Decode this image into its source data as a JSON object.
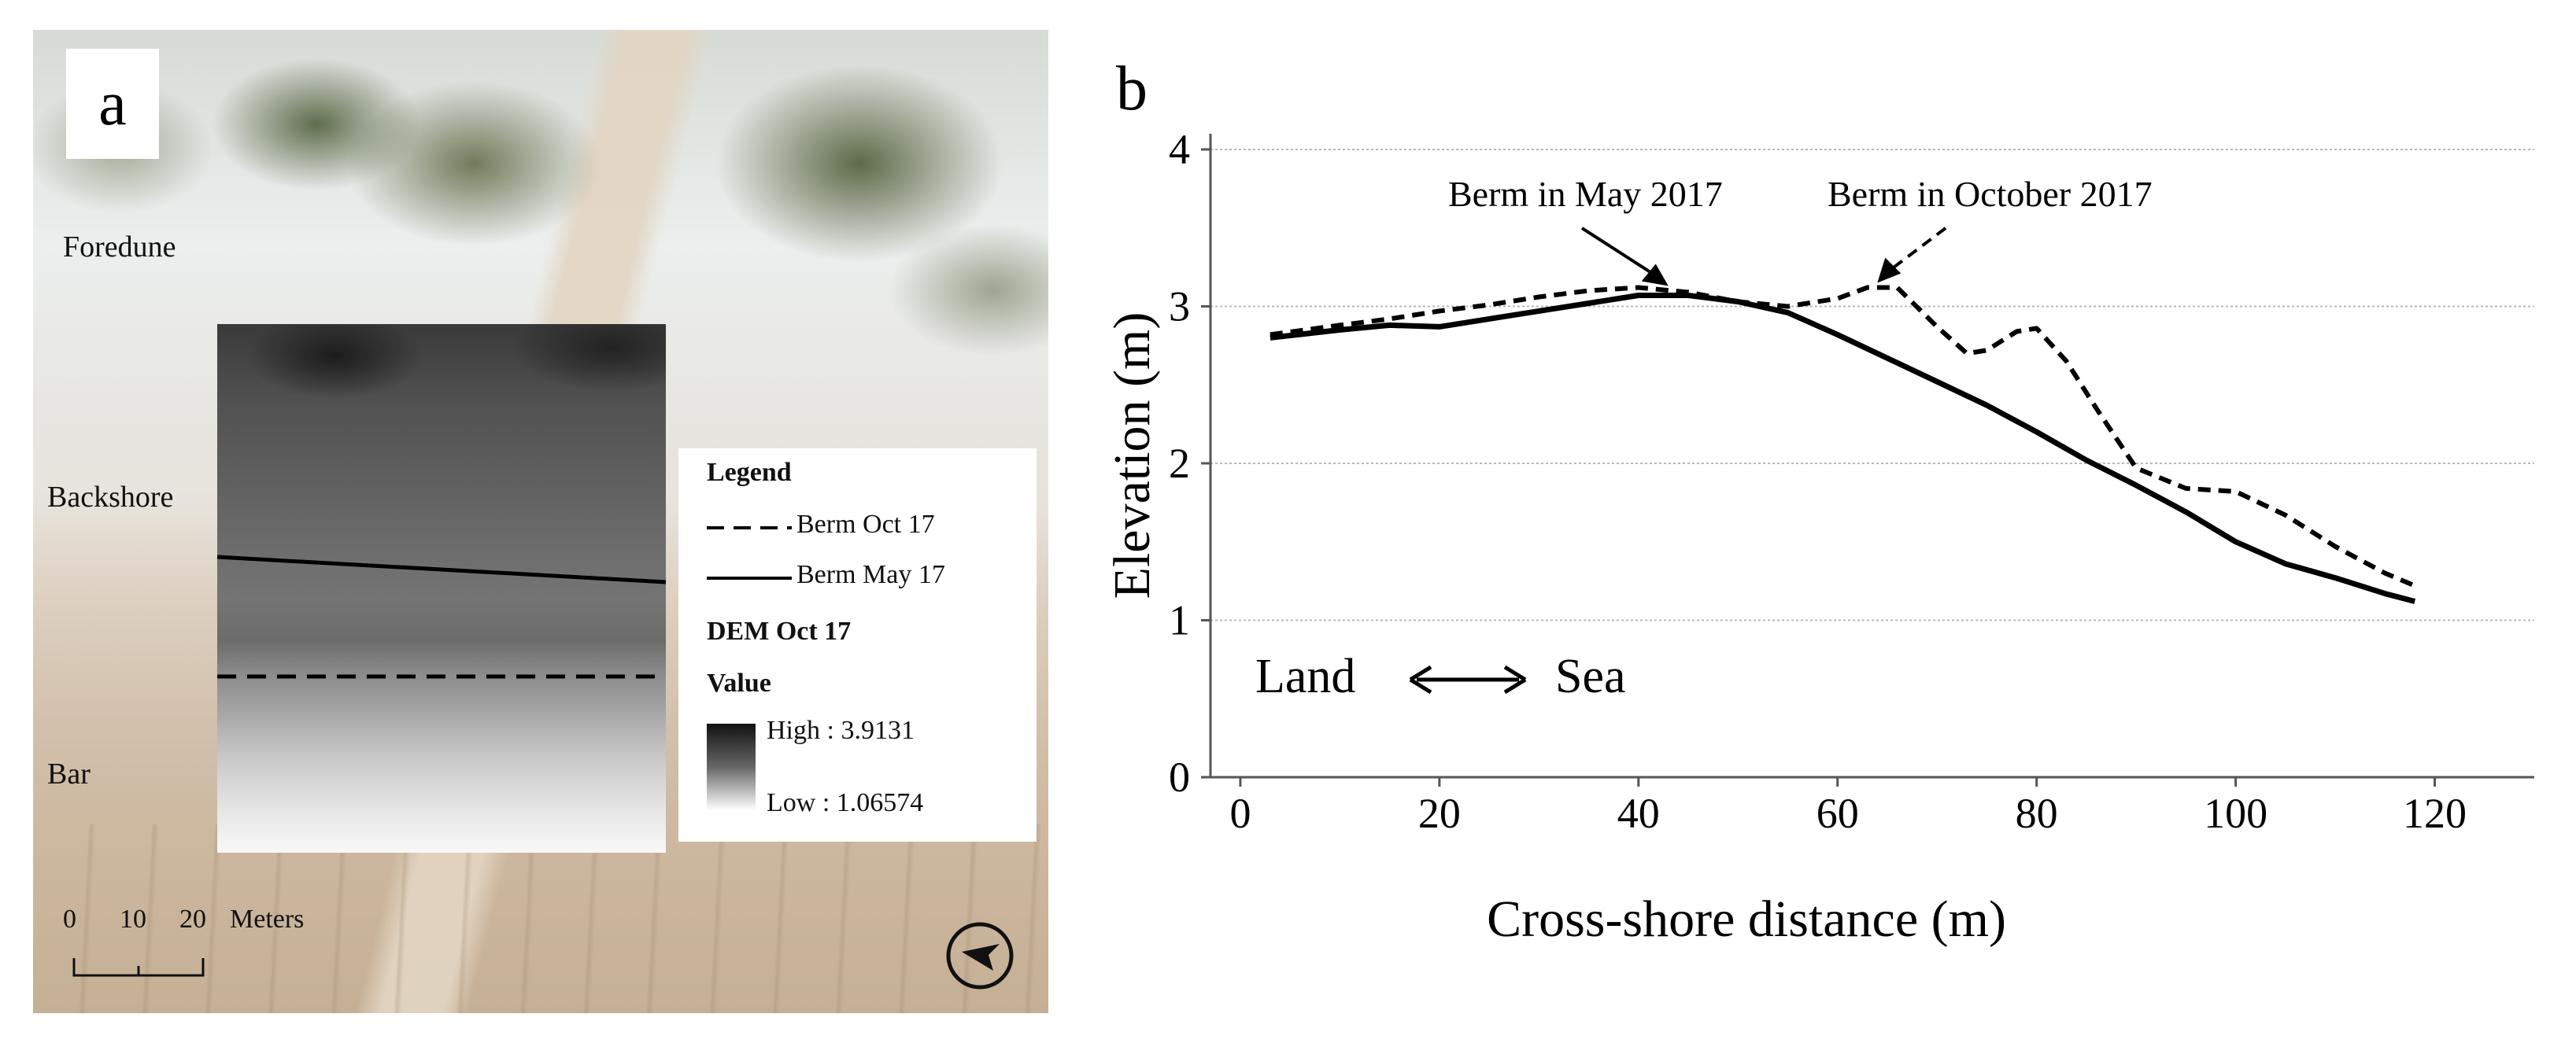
{
  "panel_a": {
    "letter": "a",
    "zones": [
      "Foredune",
      "Backshore",
      "Bar"
    ],
    "legend": {
      "title": "Legend",
      "line_items": [
        "Berm Oct 17",
        "Berm May 17"
      ],
      "raster_title": "DEM Oct 17",
      "value_label": "Value",
      "high": "High : 3.9131",
      "low": "Low : 1.06574"
    },
    "scalebar": {
      "ticks": [
        "0",
        "10",
        "20"
      ],
      "unit": "Meters"
    },
    "north_icon": "north-arrow-icon"
  },
  "chart_data": {
    "type": "line",
    "panel_letter": "b",
    "xlabel": "Cross-shore distance (m)",
    "ylabel": "Elevation (m)",
    "xlim": [
      -3,
      130
    ],
    "ylim": [
      0,
      4.1
    ],
    "x_ticks": [
      0,
      20,
      40,
      60,
      80,
      100,
      120
    ],
    "y_ticks": [
      0,
      1,
      2,
      3,
      4
    ],
    "grid": "horizontal",
    "series": [
      {
        "name": "Berm May 2017",
        "style": "solid",
        "x": [
          3,
          10,
          15,
          20,
          25,
          30,
          35,
          40,
          45,
          50,
          55,
          60,
          65,
          70,
          75,
          80,
          85,
          90,
          95,
          100,
          105,
          110,
          115,
          118
        ],
        "y": [
          2.8,
          2.85,
          2.88,
          2.87,
          2.92,
          2.97,
          3.02,
          3.07,
          3.07,
          3.03,
          2.96,
          2.82,
          2.67,
          2.52,
          2.37,
          2.2,
          2.02,
          1.86,
          1.69,
          1.5,
          1.36,
          1.27,
          1.17,
          1.12
        ]
      },
      {
        "name": "Berm in October 2017",
        "style": "dashed",
        "x": [
          3,
          10,
          15,
          20,
          25,
          30,
          35,
          40,
          45,
          50,
          55,
          60,
          63,
          66,
          70,
          73,
          75,
          78,
          80,
          83,
          86,
          90,
          95,
          100,
          105,
          110,
          115,
          118
        ],
        "y": [
          2.82,
          2.88,
          2.92,
          2.97,
          3.01,
          3.06,
          3.1,
          3.12,
          3.09,
          3.03,
          3.0,
          3.05,
          3.12,
          3.12,
          2.87,
          2.7,
          2.72,
          2.84,
          2.86,
          2.65,
          2.35,
          1.97,
          1.84,
          1.82,
          1.67,
          1.47,
          1.3,
          1.22
        ]
      }
    ],
    "annotations": [
      {
        "text": "Berm in May 2017",
        "point": [
          43,
          3.1
        ],
        "style": "solid"
      },
      {
        "text": "Berm in October 2017",
        "point": [
          64,
          3.12
        ],
        "style": "dashed"
      },
      {
        "text": "Land",
        "style": "large"
      },
      {
        "text": "Sea",
        "style": "large"
      }
    ]
  }
}
